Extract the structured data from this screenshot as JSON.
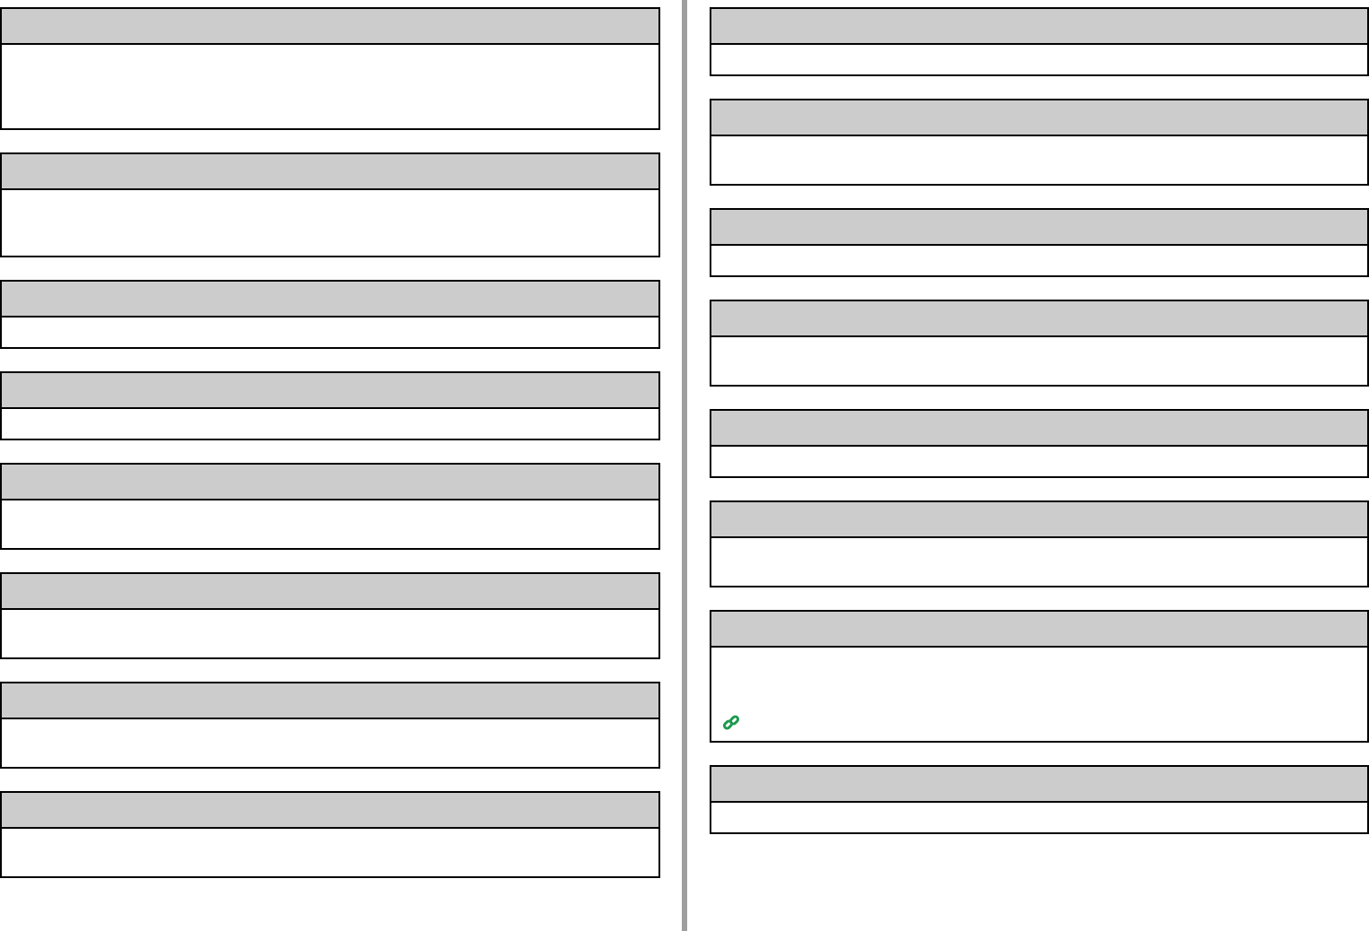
{
  "colors": {
    "header_fill": "#cccccc",
    "border": "#000000",
    "divider": "#9e9e9e",
    "link_icon": "#1e9a4e"
  },
  "icons": {
    "link": "chain-link-icon"
  }
}
